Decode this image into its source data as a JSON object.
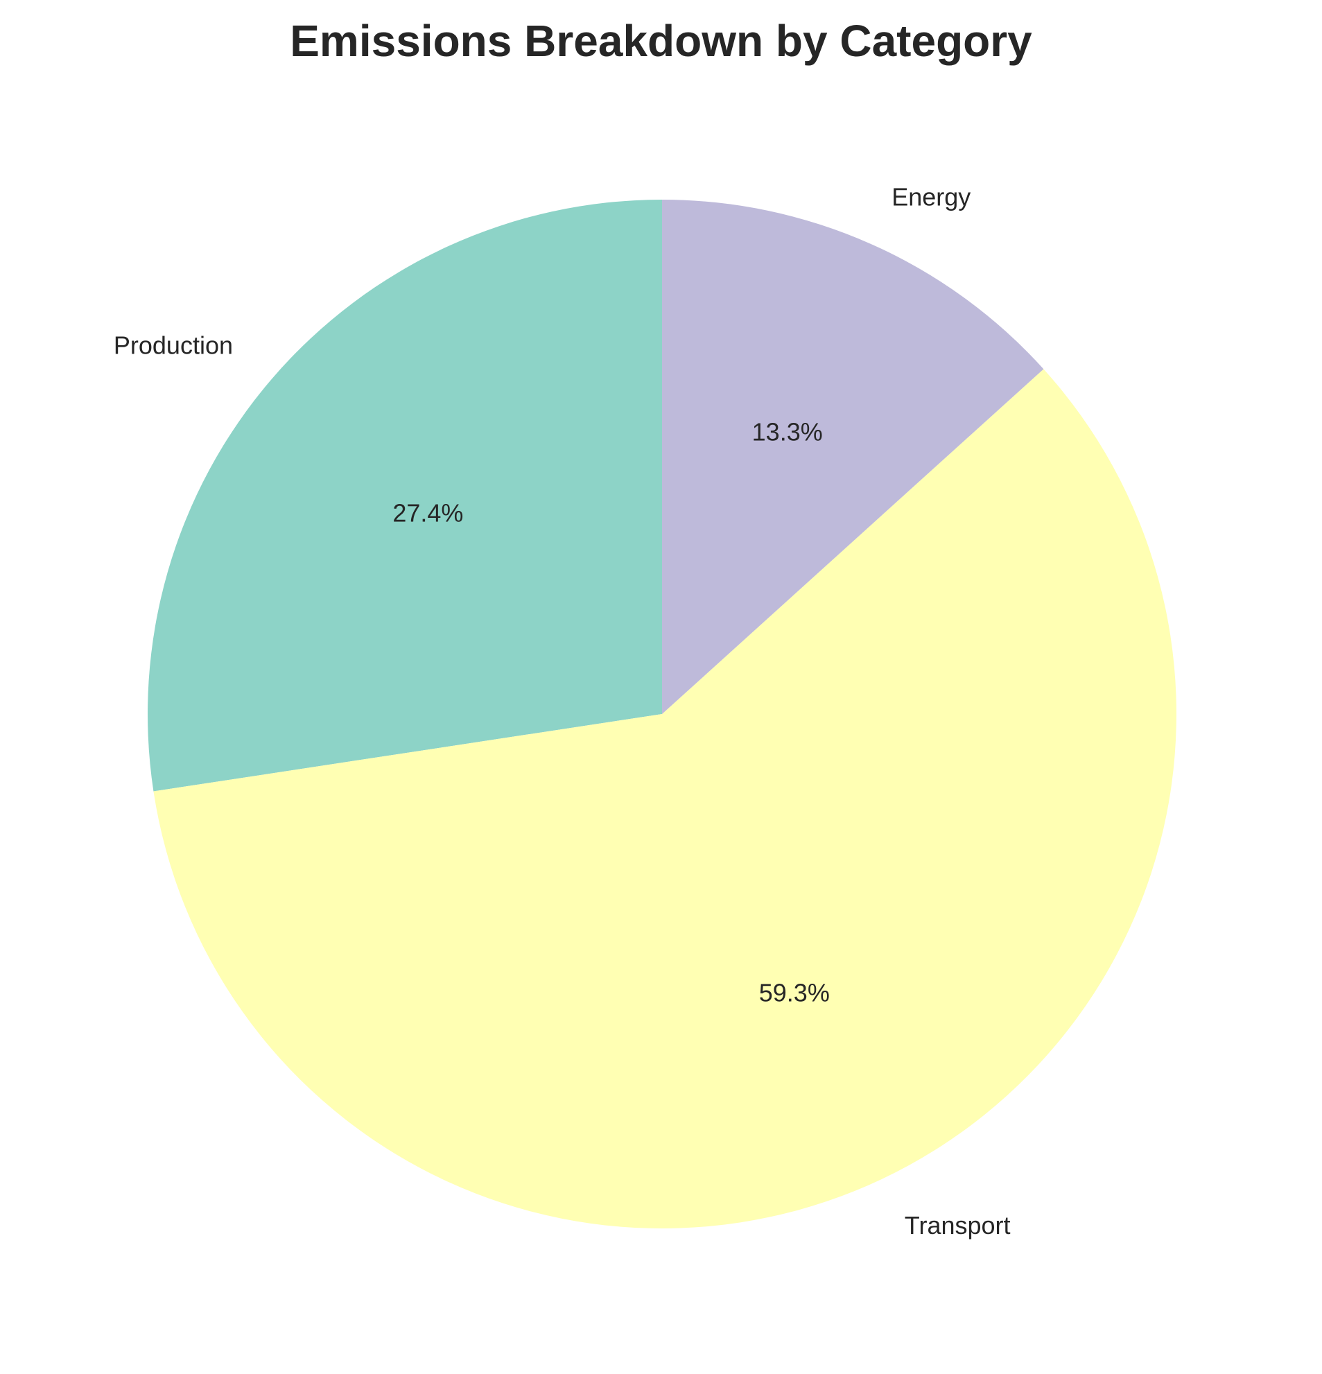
{
  "chart_data": {
    "type": "pie",
    "title": "Emissions Breakdown by Category",
    "slices": [
      {
        "label": "Production",
        "value": 27.4,
        "pct_text": "27.4%",
        "color": "#8dd3c7"
      },
      {
        "label": "Transport",
        "value": 59.3,
        "pct_text": "59.3%",
        "color": "#ffffb3"
      },
      {
        "label": "Energy",
        "value": 13.3,
        "pct_text": "13.3%",
        "color": "#bebada"
      }
    ],
    "start_angle_deg": 90,
    "direction": "counterclockwise",
    "legend": "none"
  }
}
